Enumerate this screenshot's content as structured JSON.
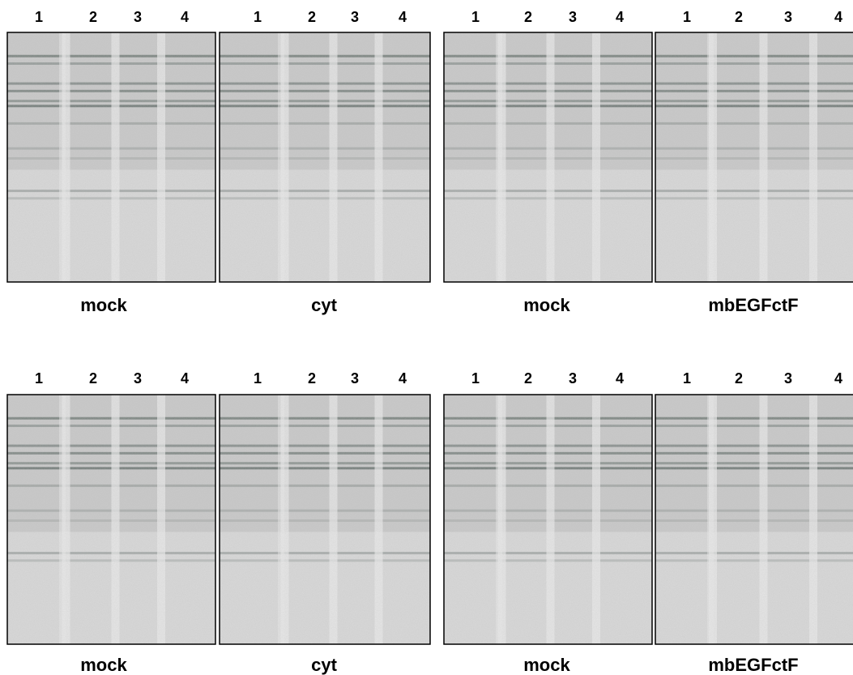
{
  "rows": [
    {
      "panels": [
        {
          "lanes": [
            "1",
            "2",
            "3",
            "4"
          ],
          "caption": "mock"
        },
        {
          "lanes": [
            "1",
            "2",
            "3",
            "4"
          ],
          "caption": "cyt"
        },
        {
          "lanes": [
            "1",
            "2",
            "3",
            "4"
          ],
          "caption": "mock"
        },
        {
          "lanes": [
            "1",
            "2",
            "3",
            "4"
          ],
          "caption": "mbEGFctF"
        }
      ]
    },
    {
      "panels": [
        {
          "lanes": [
            "1",
            "2",
            "3",
            "4"
          ],
          "caption": "mock"
        },
        {
          "lanes": [
            "1",
            "2",
            "3",
            "4"
          ],
          "caption": "cyt"
        },
        {
          "lanes": [
            "1",
            "2",
            "3",
            "4"
          ],
          "caption": "mock"
        },
        {
          "lanes": [
            "1",
            "2",
            "3",
            "4"
          ],
          "caption": "mbEGFctF"
        }
      ]
    }
  ]
}
